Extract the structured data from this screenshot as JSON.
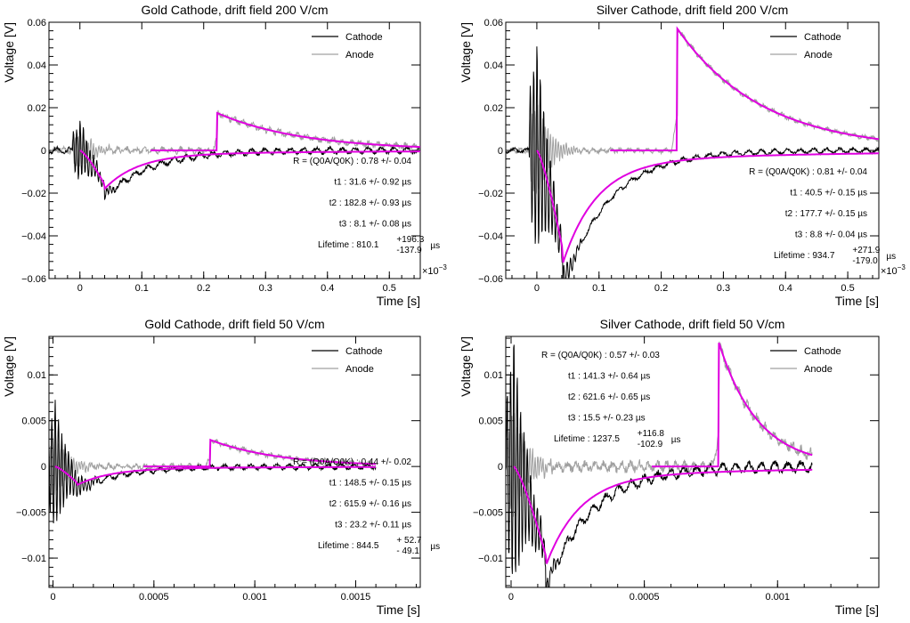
{
  "chart_data": [
    {
      "type": "line",
      "title": "Gold Cathode, drift field 200 V/cm",
      "xlabel": "Time [s]",
      "ylabel": "Voltage [V]",
      "xlim": [
        -5e-05,
        0.00055
      ],
      "ylim": [
        -0.06,
        0.06
      ],
      "xticks": [
        0,
        0.0001,
        0.0002,
        0.0003,
        0.0004,
        0.0005
      ],
      "xtick_labels": [
        "0",
        "0.1",
        "0.2",
        "0.3",
        "0.4",
        "0.5"
      ],
      "x_exponent": "×10",
      "x_exponent_power": "−3",
      "yticks": [
        -0.06,
        -0.04,
        -0.02,
        0,
        0.02,
        0.04,
        0.06
      ],
      "ytick_labels": [
        "−0.06",
        "−0.04",
        "−0.02",
        "0",
        "0.02",
        "0.04",
        "0.06"
      ],
      "legend": {
        "position": "top-right",
        "entries": [
          {
            "name": "Cathode",
            "color": "#000000"
          },
          {
            "name": "Anode",
            "color": "#a0a0a0"
          }
        ]
      },
      "params": {
        "t0": 0.0,
        "R": 0.78,
        "t1": 31.6,
        "t2": 182.8,
        "t3": 8.1,
        "amp": 0.0175,
        "tc": 0.000222,
        "tend": 0.00055,
        "ringA": 0.021,
        "ringCath": 0.014,
        "noise": 0.0015
      },
      "fit": {
        "cathode": {
          "peak_x": 4e-05,
          "peak_y": -0.016,
          "x_end": 0.00055
        },
        "anode": {
          "peak_x": 0.000222,
          "peak_y": 0.0175,
          "x_end": 0.00055
        }
      },
      "annotations": {
        "R": "R = (Q0A/Q0K)  :  0.78 +/-  0.04",
        "t1": "t1 :  31.6 +/-  0.92 µs",
        "t2": "t2 : 182.8 +/-  0.93 µs",
        "t3": "t3 :   8.1 +/-  0.08 µs",
        "lifetime_label": "Lifetime : 810.1",
        "lifetime_plus": "+196.3",
        "lifetime_minus": "-137.9",
        "lifetime_unit": "µs"
      }
    },
    {
      "type": "line",
      "title": "Silver Cathode, drift field 200 V/cm",
      "xlabel": "Time [s]",
      "ylabel": "Voltage [V]",
      "xlim": [
        -5e-05,
        0.00055
      ],
      "ylim": [
        -0.06,
        0.06
      ],
      "xticks": [
        0,
        0.0001,
        0.0002,
        0.0003,
        0.0004,
        0.0005
      ],
      "xtick_labels": [
        "0",
        "0.1",
        "0.2",
        "0.3",
        "0.4",
        "0.5"
      ],
      "x_exponent": "×10",
      "x_exponent_power": "−3",
      "yticks": [
        -0.06,
        -0.04,
        -0.02,
        0,
        0.02,
        0.04,
        0.06
      ],
      "ytick_labels": [
        "−0.06",
        "−0.04",
        "−0.02",
        "0",
        "0.02",
        "0.04",
        "0.06"
      ],
      "legend": {
        "position": "top-right",
        "entries": [
          {
            "name": "Cathode",
            "color": "#000000"
          },
          {
            "name": "Anode",
            "color": "#a0a0a0"
          }
        ]
      },
      "params": {
        "t0": 0.0,
        "amp": 0.057,
        "tc": 0.000226,
        "tend": 0.00055,
        "ringA": 0.054,
        "ringCath": 0.05,
        "noise": 0.0012
      },
      "fit": {
        "cathode": {
          "peak_x": 4.2e-05,
          "peak_y": -0.047,
          "x_end": 0.00055
        },
        "anode": {
          "peak_x": 0.000226,
          "peak_y": 0.057,
          "x_end": 0.00055
        }
      },
      "annotations": {
        "R": "R = (Q0A/Q0K)  :  0.81 +/-  0.04",
        "t1": "t1 :  40.5 +/-  0.15 µs",
        "t2": "t2 : 177.7 +/-  0.15 µs",
        "t3": "t3 :   8.8 +/-  0.04 µs",
        "lifetime_label": "Lifetime : 934.7",
        "lifetime_plus": "+271.9",
        "lifetime_minus": "-179.0",
        "lifetime_unit": "µs"
      }
    },
    {
      "type": "line",
      "title": "Gold Cathode, drift field 50 V/cm",
      "xlabel": "Time [s]",
      "ylabel": "Voltage [V]",
      "xlim": [
        -2e-05,
        0.00182
      ],
      "ylim": [
        -0.0132,
        0.0142
      ],
      "xticks": [
        0,
        0.0005,
        0.001,
        0.0015
      ],
      "xtick_labels": [
        "0",
        "0.0005",
        "0.001",
        "0.0015"
      ],
      "yticks": [
        -0.01,
        -0.005,
        0,
        0.005,
        0.01
      ],
      "ytick_labels": [
        "−0.01",
        "−0.005",
        "0",
        "0.005",
        "0.01"
      ],
      "legend": {
        "position": "top-right",
        "entries": [
          {
            "name": "Cathode",
            "color": "#000000"
          },
          {
            "name": "Anode",
            "color": "#a0a0a0"
          }
        ]
      },
      "params": {
        "t0": 1e-05,
        "amp": 0.0029,
        "tc": 0.00078,
        "tend": 0.0016,
        "ringA": 0.008,
        "ringCath": 0.007,
        "noise": 0.0003
      },
      "fit": {
        "cathode": {
          "peak_x": 0.00012,
          "peak_y": -0.0018,
          "x_end": 0.0016
        },
        "anode": {
          "peak_x": 0.00078,
          "peak_y": 0.0029,
          "x_end": 0.0016
        }
      },
      "annotations": {
        "R": "R = (Q0A/Q0K)  :  0.44 +/-  0.02",
        "t1": "t1 : 148.5 +/-  0.15 µs",
        "t2": "t2 : 615.9 +/-  0.16 µs",
        "t3": "t3 :  23.2 +/-  0.11 µs",
        "lifetime_label": "Lifetime : 844.5",
        "lifetime_plus": "+ 52.7",
        "lifetime_minus": "- 49.1",
        "lifetime_unit": "µs"
      }
    },
    {
      "type": "line",
      "title": "Silver Cathode, drift field 50 V/cm",
      "xlabel": "Time [s]",
      "ylabel": "Voltage [V]",
      "xlim": [
        -2e-05,
        0.00138
      ],
      "ylim": [
        -0.0132,
        0.0142
      ],
      "xticks": [
        0,
        0.0005,
        0.001
      ],
      "xtick_labels": [
        "0",
        "0.0005",
        "0.001"
      ],
      "yticks": [
        -0.01,
        -0.005,
        0,
        0.005,
        0.01
      ],
      "ytick_labels": [
        "−0.01",
        "−0.005",
        "0",
        "0.005",
        "0.01"
      ],
      "legend": {
        "position": "top-right",
        "entries": [
          {
            "name": "Cathode",
            "color": "#000000"
          },
          {
            "name": "Anode",
            "color": "#a0a0a0"
          }
        ]
      },
      "params": {
        "t0": 1e-05,
        "amp": 0.0135,
        "tc": 0.00078,
        "tend": 0.00113,
        "ringA": 0.014,
        "ringCath": 0.014,
        "noise": 0.0006
      },
      "fit": {
        "cathode": {
          "peak_x": 0.00013,
          "peak_y": -0.0097,
          "x_end": 0.00113
        },
        "anode": {
          "peak_x": 0.00078,
          "peak_y": 0.0135,
          "x_end": 0.00113
        }
      },
      "annotations": {
        "R": "R = (Q0A/Q0K)  :  0.57 +/-  0.03",
        "t1": "t1 : 141.3 +/-  0.64 µs",
        "t2": "t2 : 621.6 +/-  0.65 µs",
        "t3": "t3 :  15.5 +/-  0.23 µs",
        "lifetime_label": "Lifetime : 1237.5",
        "lifetime_plus": "+116.8",
        "lifetime_minus": "-102.9",
        "lifetime_unit": "µs"
      }
    }
  ],
  "colors": {
    "cathode": "#000000",
    "anode": "#a0a0a0",
    "fit": "#e000e0"
  }
}
